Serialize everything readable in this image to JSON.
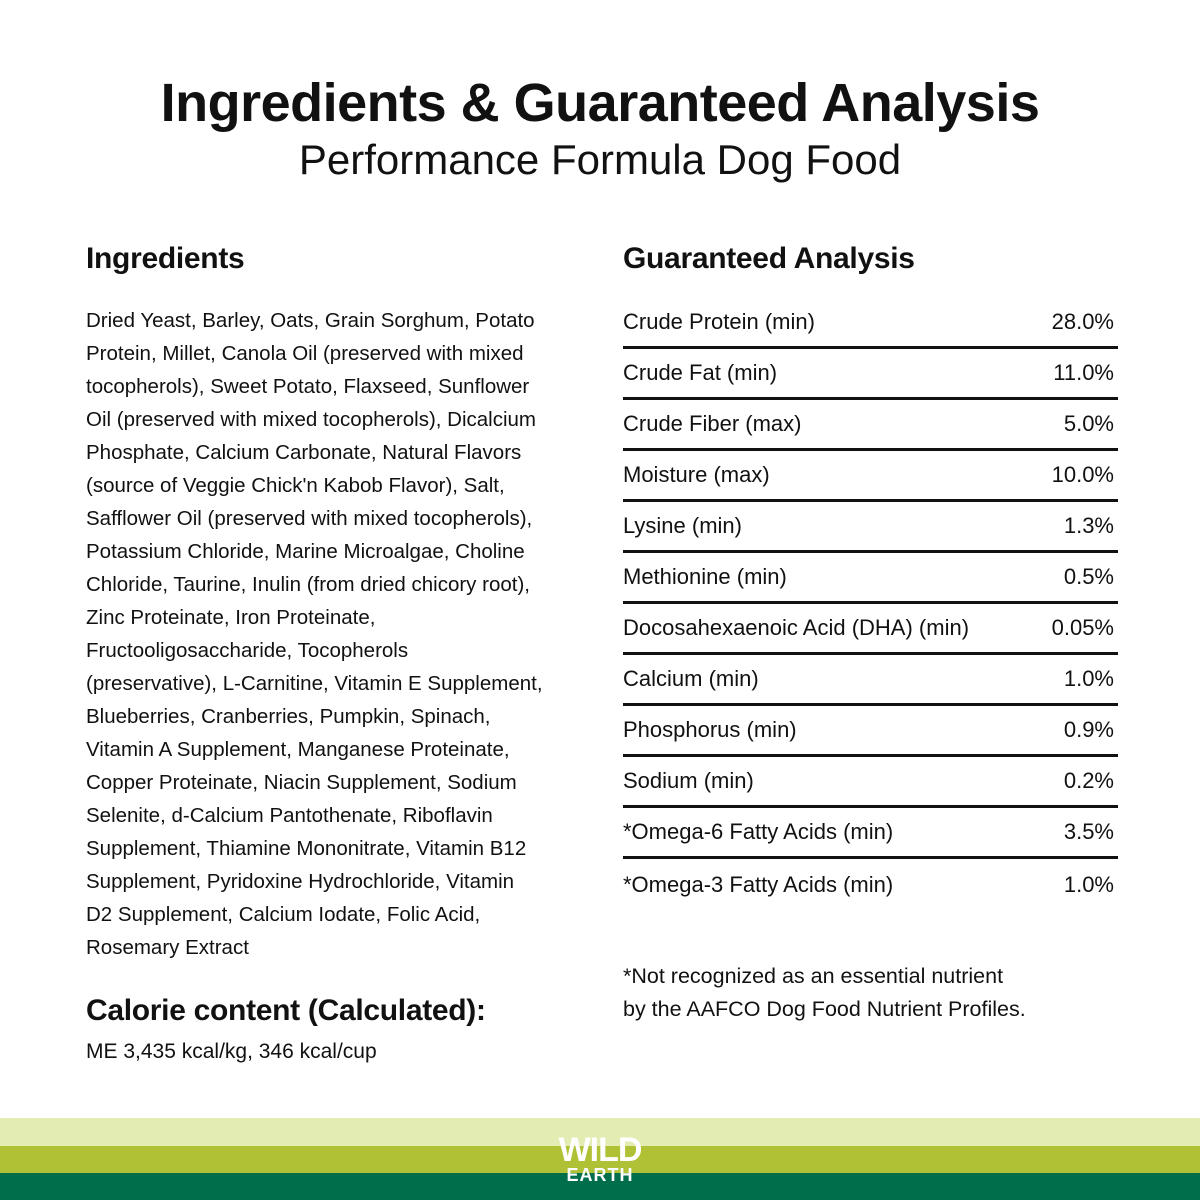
{
  "header": {
    "title": "Ingredients & Guaranteed Analysis",
    "subtitle": "Performance Formula Dog Food"
  },
  "ingredients": {
    "heading": "Ingredients",
    "lines": [
      "Dried Yeast, Barley, Oats, Grain Sorghum, Potato",
      "Protein, Millet, Canola Oil (preserved with mixed",
      "tocopherols), Sweet Potato, Flaxseed, Sunflower",
      "Oil (preserved with mixed tocopherols), Dicalcium",
      "Phosphate, Calcium Carbonate, Natural Flavors",
      "(source of Veggie Chick'n Kabob Flavor), Salt,",
      "Safflower Oil (preserved with mixed tocopherols),",
      "Potassium Chloride, Marine Microalgae, Choline",
      "Chloride, Taurine, Inulin (from dried chicory root),",
      "Zinc Proteinate, Iron Proteinate,",
      "Fructooligosaccharide, Tocopherols",
      "(preservative), L-Carnitine, Vitamin E Supplement,",
      "Blueberries, Cranberries, Pumpkin, Spinach,",
      "Vitamin A Supplement, Manganese Proteinate,",
      "Copper Proteinate, Niacin Supplement, Sodium",
      "Selenite, d-Calcium Pantothenate, Riboflavin",
      "Supplement, Thiamine Mononitrate, Vitamin B12",
      "Supplement, Pyridoxine Hydrochloride, Vitamin",
      "D2 Supplement, Calcium Iodate, Folic Acid,",
      "Rosemary Extract"
    ]
  },
  "calorie": {
    "heading": "Calorie content (Calculated):",
    "value": "ME 3,435 kcal/kg, 346 kcal/cup"
  },
  "analysis": {
    "heading": "Guaranteed Analysis",
    "rows": [
      {
        "label": "Crude Protein (min)",
        "value": "28.0%"
      },
      {
        "label": "Crude Fat (min)",
        "value": "11.0%"
      },
      {
        "label": "Crude Fiber (max)",
        "value": "5.0%"
      },
      {
        "label": "Moisture (max)",
        "value": "10.0%"
      },
      {
        "label": "Lysine (min)",
        "value": "1.3%"
      },
      {
        "label": "Methionine (min)",
        "value": "0.5%"
      },
      {
        "label": "Docosahexaenoic Acid (DHA) (min)",
        "value": "0.05%"
      },
      {
        "label": "Calcium (min)",
        "value": "1.0%"
      },
      {
        "label": "Phosphorus (min)",
        "value": "0.9%"
      },
      {
        "label": "Sodium (min)",
        "value": "0.2%"
      },
      {
        "label": "*Omega-6 Fatty Acids (min)",
        "value": "3.5%"
      },
      {
        "label": "*Omega-3 Fatty Acids (min)",
        "value": "1.0%"
      }
    ],
    "note_lines": [
      "*Not recognized as an essential nutrient",
      "by the AAFCO Dog Food Nutrient Profiles."
    ]
  },
  "footer": {
    "logo_line1": "WILD",
    "logo_line2": "EARTH",
    "colors": {
      "light": "#e3ecb2",
      "mid": "#b0c136",
      "dark": "#006e4b"
    }
  }
}
